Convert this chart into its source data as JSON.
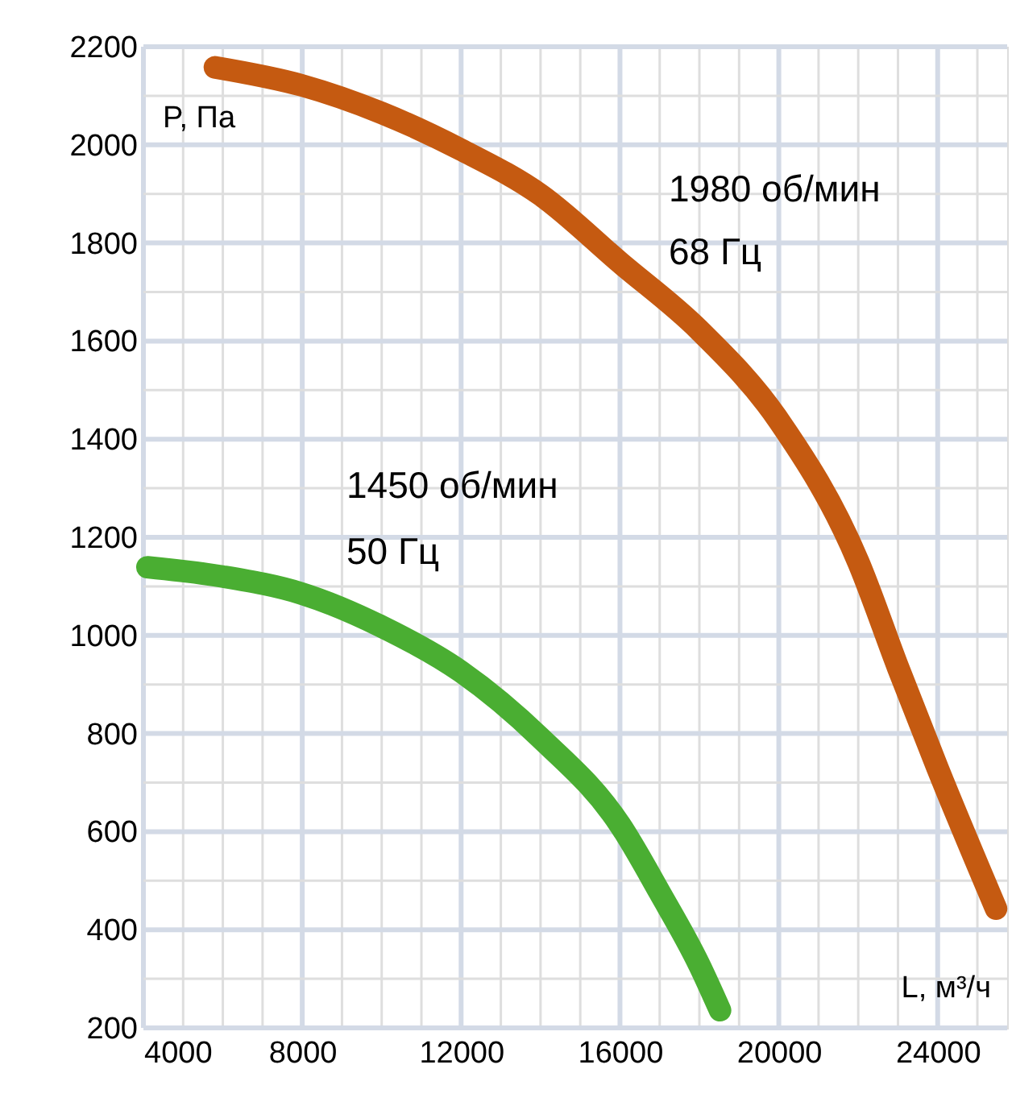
{
  "chart_data": {
    "type": "line",
    "xlabel": "L, м³/ч",
    "ylabel": "P, Па",
    "series": [
      {
        "color": "#c55a11",
        "x": [
          5800,
          8000,
          10000,
          12000,
          14000,
          16000,
          18000,
          20000,
          22000,
          23000,
          24000,
          25470
        ],
        "values": [
          2158,
          2121,
          2065,
          1990,
          1898,
          1760,
          1622,
          1438,
          1150,
          935,
          729,
          443
        ]
      },
      {
        "color": "#4aae32",
        "x": [
          4100,
          6000,
          8000,
          10000,
          12000,
          14000,
          16000,
          17000,
          18000,
          18520
        ],
        "values": [
          1139,
          1120,
          1085,
          1018,
          926,
          791,
          614,
          476,
          328,
          236
        ]
      }
    ],
    "annotations": [
      "1980 об/мин",
      "68 Гц",
      "1450 об/мин",
      "50 Гц"
    ],
    "xlim": [
      4000,
      25750
    ],
    "xticks": [
      4000,
      {
        "value": 5000,
        "label": null
      },
      {
        "value": 6000,
        "label": null
      },
      {
        "value": 7000,
        "label": null
      },
      8000,
      {
        "value": 9000,
        "label": null
      },
      {
        "value": 10000,
        "label": null
      },
      {
        "value": 11000,
        "label": null
      },
      12000,
      {
        "value": 13000,
        "label": null
      },
      {
        "value": 14000,
        "label": null
      },
      {
        "value": 15000,
        "label": null
      },
      16000,
      {
        "value": 17000,
        "label": null
      },
      {
        "value": 18000,
        "label": null
      },
      {
        "value": 19000,
        "label": null
      },
      20000,
      {
        "value": 21000,
        "label": null
      },
      {
        "value": 22000,
        "label": null
      },
      {
        "value": 23000,
        "label": null
      },
      24000,
      {
        "value": 25000,
        "label": null
      }
    ],
    "ylim": [
      200,
      2200
    ],
    "yticks": [
      200,
      {
        "value": 300,
        "label": null
      },
      400,
      {
        "value": 500,
        "label": null
      },
      600,
      {
        "value": 700,
        "label": null
      },
      800,
      {
        "value": 900,
        "label": null
      },
      1000,
      {
        "value": 1100,
        "label": null
      },
      1200,
      {
        "value": 1300,
        "label": null
      },
      1400,
      {
        "value": 1500,
        "label": null
      },
      1600,
      {
        "value": 1700,
        "label": null
      },
      1800,
      {
        "value": 1900,
        "label": null
      },
      2000,
      {
        "value": 2100,
        "label": null
      },
      2200
    ],
    "grid": true,
    "line_style": "solid"
  }
}
